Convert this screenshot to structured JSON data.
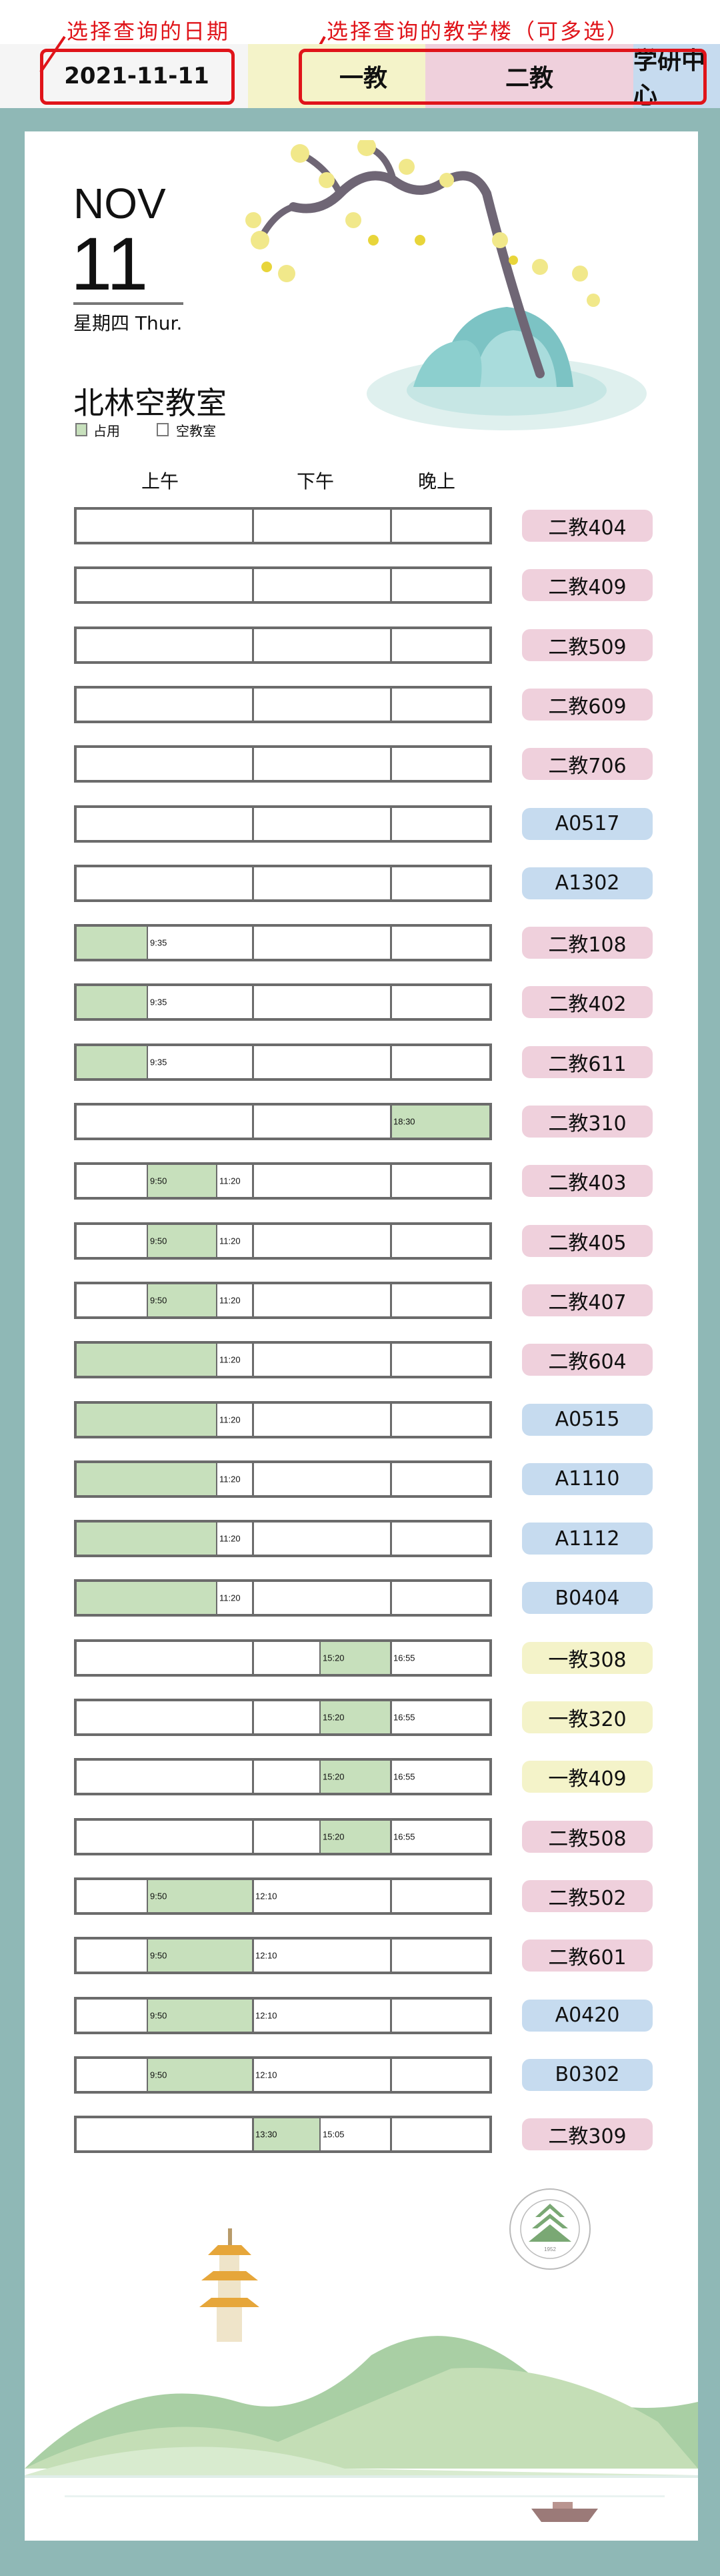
{
  "annotations": {
    "date_hint": "选择查询的日期",
    "building_hint": "选择查询的教学楼（可多选）"
  },
  "date_picker": {
    "value": "2021-11-11"
  },
  "buildings": [
    {
      "label": "一教",
      "color": "#f4f3c9"
    },
    {
      "label": "二教",
      "color": "#efd0dc"
    },
    {
      "label": "学研中心",
      "color": "#c6dbef"
    }
  ],
  "calendar": {
    "month": "NOV",
    "day": "11",
    "weekday": "星期四 Thur."
  },
  "title": "北林空教室",
  "legend": {
    "occupied": "占用",
    "free": "空教室",
    "occupied_color": "#c7e0bc"
  },
  "columns": {
    "morning": "上午",
    "afternoon": "下午",
    "evening": "晚上"
  },
  "rooms": [
    {
      "name": "二教404",
      "building": 1,
      "occupied": []
    },
    {
      "name": "二教409",
      "building": 1,
      "occupied": []
    },
    {
      "name": "二教509",
      "building": 1,
      "occupied": []
    },
    {
      "name": "二教609",
      "building": 1,
      "occupied": []
    },
    {
      "name": "二教706",
      "building": 1,
      "occupied": []
    },
    {
      "name": "A0517",
      "building": 2,
      "occupied": []
    },
    {
      "name": "A1302",
      "building": 2,
      "occupied": []
    },
    {
      "name": "二教108",
      "building": 1,
      "occupied": [
        {
          "start": "8:00",
          "end": "9:35"
        }
      ]
    },
    {
      "name": "二教402",
      "building": 1,
      "occupied": [
        {
          "start": "8:00",
          "end": "9:35"
        }
      ]
    },
    {
      "name": "二教611",
      "building": 1,
      "occupied": [
        {
          "start": "8:00",
          "end": "9:35"
        }
      ]
    },
    {
      "name": "二教310",
      "building": 1,
      "occupied": [
        {
          "start": "18:30",
          "end": "end"
        }
      ]
    },
    {
      "name": "二教403",
      "building": 1,
      "occupied": [
        {
          "start": "9:50",
          "end": "11:20"
        }
      ]
    },
    {
      "name": "二教405",
      "building": 1,
      "occupied": [
        {
          "start": "9:50",
          "end": "11:20"
        }
      ]
    },
    {
      "name": "二教407",
      "building": 1,
      "occupied": [
        {
          "start": "9:50",
          "end": "11:20"
        }
      ]
    },
    {
      "name": "二教604",
      "building": 1,
      "occupied": [
        {
          "start": "8:00",
          "end": "11:20"
        }
      ]
    },
    {
      "name": "A0515",
      "building": 2,
      "occupied": [
        {
          "start": "8:00",
          "end": "11:20"
        }
      ]
    },
    {
      "name": "A1110",
      "building": 2,
      "occupied": [
        {
          "start": "8:00",
          "end": "11:20"
        }
      ]
    },
    {
      "name": "A1112",
      "building": 2,
      "occupied": [
        {
          "start": "8:00",
          "end": "11:20"
        }
      ]
    },
    {
      "name": "B0404",
      "building": 2,
      "occupied": [
        {
          "start": "8:00",
          "end": "11:20"
        }
      ]
    },
    {
      "name": "一教308",
      "building": 0,
      "occupied": [
        {
          "start": "15:20",
          "end": "16:55"
        }
      ]
    },
    {
      "name": "一教320",
      "building": 0,
      "occupied": [
        {
          "start": "15:20",
          "end": "16:55"
        }
      ]
    },
    {
      "name": "一教409",
      "building": 0,
      "occupied": [
        {
          "start": "15:20",
          "end": "16:55"
        }
      ]
    },
    {
      "name": "二教508",
      "building": 1,
      "occupied": [
        {
          "start": "15:20",
          "end": "16:55"
        }
      ]
    },
    {
      "name": "二教502",
      "building": 1,
      "occupied": [
        {
          "start": "9:50",
          "end": "12:10"
        }
      ]
    },
    {
      "name": "二教601",
      "building": 1,
      "occupied": [
        {
          "start": "9:50",
          "end": "12:10"
        }
      ]
    },
    {
      "name": "A0420",
      "building": 2,
      "occupied": [
        {
          "start": "9:50",
          "end": "12:10"
        }
      ]
    },
    {
      "name": "B0302",
      "building": 2,
      "occupied": [
        {
          "start": "9:50",
          "end": "12:10"
        }
      ]
    },
    {
      "name": "二教309",
      "building": 1,
      "occupied": [
        {
          "start": "13:30",
          "end": "15:05"
        }
      ]
    }
  ],
  "seal": {
    "text": "北京林业大学 BEIJING FORESTRY UNIVERSITY 1952",
    "color": "#7aa874"
  }
}
